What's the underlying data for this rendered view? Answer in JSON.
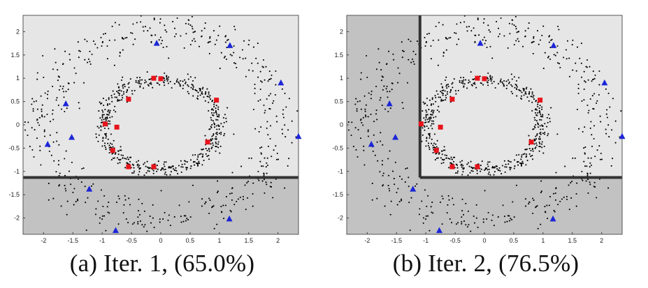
{
  "chart_data": [
    {
      "type": "scatter",
      "caption": "(a) Iter. 1, (65.0%)",
      "xlim": [
        -2.35,
        2.35
      ],
      "ylim": [
        -2.35,
        2.35
      ],
      "xticks": [
        "-2",
        "-1.5",
        "-1",
        "-0.5",
        "0",
        "0.5",
        "1",
        "1.5",
        "2"
      ],
      "yticks": [
        "2",
        "1.5",
        "1",
        "0.5",
        "0",
        "-0.5",
        "-1",
        "-1.5",
        "-2"
      ],
      "colors": {
        "light_region": "#e6e6e6",
        "dark_region": "#c2c2c2",
        "boundary": "#333333",
        "square": "#e8141b",
        "triangle": "#1c26d6",
        "dots": "#000000"
      },
      "regions": {
        "dark": [
          {
            "x": [
              -2.35,
              2.35
            ],
            "y": [
              -2.35,
              -1.13
            ]
          }
        ],
        "boundary": [
          [
            -2.35,
            -1.13,
            2.35,
            -1.13
          ]
        ]
      },
      "squares": [
        [
          -0.12,
          1.0
        ],
        [
          -0.55,
          0.55
        ],
        [
          0.95,
          0.53
        ],
        [
          -0.75,
          -0.05
        ],
        [
          -0.95,
          0.02
        ],
        [
          0.8,
          -0.37
        ],
        [
          -0.82,
          -0.55
        ],
        [
          -0.55,
          -0.9
        ],
        [
          -0.12,
          -0.9
        ],
        [
          0.0,
          0.99
        ]
      ],
      "triangles": [
        [
          -0.07,
          1.75
        ],
        [
          1.18,
          1.7
        ],
        [
          2.05,
          0.9
        ],
        [
          2.35,
          -0.25
        ],
        [
          -1.62,
          0.45
        ],
        [
          -1.93,
          -0.42
        ],
        [
          -1.52,
          -0.27
        ],
        [
          -1.22,
          -1.38
        ],
        [
          -0.77,
          -2.27
        ],
        [
          1.17,
          -2.02
        ]
      ]
    },
    {
      "type": "scatter",
      "caption": "(b) Iter. 2, (76.5%)",
      "xlim": [
        -2.35,
        2.35
      ],
      "ylim": [
        -2.35,
        2.35
      ],
      "xticks": [
        "-2",
        "-1.5",
        "-1",
        "-0.5",
        "0",
        "0.5",
        "1",
        "1.5",
        "2"
      ],
      "yticks": [
        "2",
        "1.5",
        "1",
        "0.5",
        "0",
        "-0.5",
        "-1",
        "-1.5",
        "-2"
      ],
      "colors": {
        "light_region": "#e6e6e6",
        "dark_region": "#c2c2c2",
        "boundary": "#333333",
        "square": "#e8141b",
        "triangle": "#1c26d6",
        "dots": "#000000"
      },
      "regions": {
        "dark": [
          {
            "x": [
              -2.35,
              -1.1
            ],
            "y": [
              -2.35,
              2.35
            ]
          },
          {
            "x": [
              -1.1,
              2.35
            ],
            "y": [
              -2.35,
              -1.13
            ]
          }
        ],
        "boundary": [
          [
            -1.1,
            -1.13,
            -1.1,
            2.35
          ],
          [
            -1.1,
            -1.13,
            2.35,
            -1.13
          ]
        ]
      },
      "squares": [
        [
          -0.12,
          1.0
        ],
        [
          -0.55,
          0.55
        ],
        [
          0.95,
          0.53
        ],
        [
          -0.75,
          -0.05
        ],
        [
          -1.08,
          0.02
        ],
        [
          0.8,
          -0.37
        ],
        [
          -0.82,
          -0.55
        ],
        [
          -0.55,
          -0.9
        ],
        [
          -0.12,
          -0.9
        ],
        [
          0.0,
          0.99
        ]
      ],
      "triangles": [
        [
          -0.07,
          1.75
        ],
        [
          1.18,
          1.7
        ],
        [
          2.05,
          0.9
        ],
        [
          2.35,
          -0.25
        ],
        [
          -1.62,
          0.45
        ],
        [
          -1.93,
          -0.42
        ],
        [
          -1.52,
          -0.27
        ],
        [
          -1.22,
          -1.38
        ],
        [
          -0.77,
          -2.27
        ],
        [
          1.17,
          -2.02
        ]
      ]
    }
  ]
}
